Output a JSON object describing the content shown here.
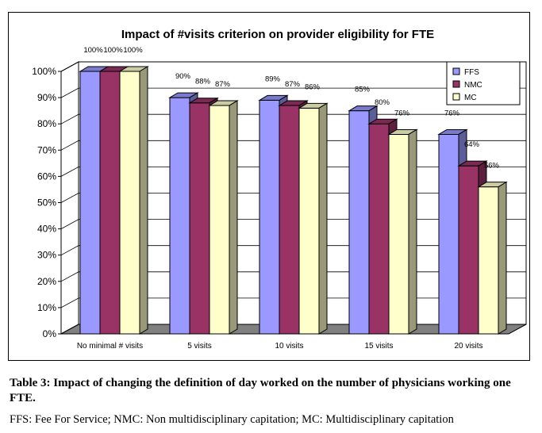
{
  "chart_data": {
    "type": "bar",
    "title": "Impact of #visits criterion on provider eligibility for FTE",
    "categories": [
      "No minimal # visits",
      "5 visits",
      "10 visits",
      "15 visits",
      "20 visits"
    ],
    "series": [
      {
        "name": "FFS",
        "values": [
          100,
          90,
          89,
          85,
          76
        ],
        "labels": [
          "100%",
          "90%",
          "89%",
          "85%",
          "76%"
        ],
        "color": "#9999ff"
      },
      {
        "name": "NMC",
        "values": [
          100,
          88,
          87,
          80,
          64
        ],
        "labels": [
          "100%",
          "88%",
          "87%",
          "80%",
          "64%"
        ],
        "color": "#993366"
      },
      {
        "name": "MC",
        "values": [
          100,
          87,
          86,
          76,
          56
        ],
        "labels": [
          "100%",
          "87%",
          "86%",
          "76%",
          "56%"
        ],
        "color": "#ffffcc"
      }
    ],
    "yticks": [
      "0%",
      "10%",
      "20%",
      "30%",
      "40%",
      "50%",
      "60%",
      "70%",
      "80%",
      "90%",
      "100%"
    ],
    "ylim": [
      0,
      100
    ],
    "grid": true,
    "legend": "top-right",
    "chart_style": "3d-clustered-column"
  },
  "caption": "Table 3: Impact of changing the definition of day worked on the number of physicians working one FTE.",
  "footnote": "FFS: Fee For Service; NMC: Non multidisciplinary capitation; MC: Multidisciplinary capitation"
}
